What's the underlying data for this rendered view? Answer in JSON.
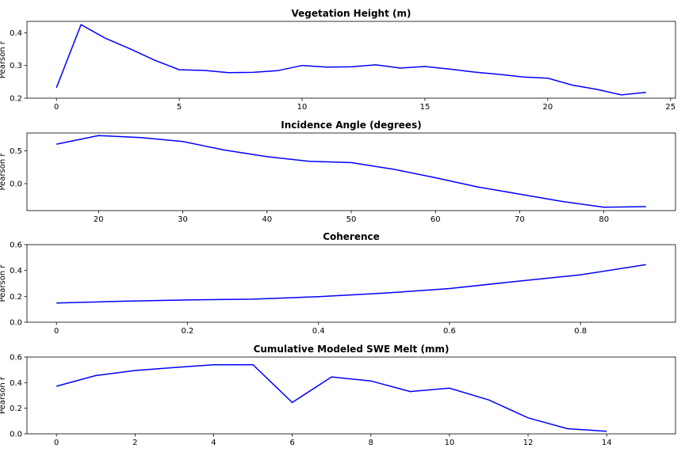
{
  "figure": {
    "line_color": "#0000ff"
  },
  "chart_data": [
    {
      "type": "line",
      "title": "Vegetation Height (m)",
      "xlabel": "",
      "ylabel": "Pearson r",
      "xlim": [
        -1.2,
        25.2
      ],
      "ylim": [
        0.2,
        0.435
      ],
      "xticks": [
        0,
        5,
        10,
        15,
        20,
        25
      ],
      "yticks": [
        0.2,
        0.3,
        0.4
      ],
      "yticklabels": [
        "0.2",
        "0.3",
        "0.4"
      ],
      "x": [
        0,
        1,
        2,
        3,
        4,
        5,
        6,
        7,
        8,
        9,
        10,
        11,
        12,
        13,
        14,
        15,
        16,
        17,
        18,
        19,
        20,
        21,
        22,
        23,
        24
      ],
      "y": [
        0.232,
        0.425,
        0.383,
        0.351,
        0.316,
        0.287,
        0.285,
        0.278,
        0.279,
        0.284,
        0.3,
        0.295,
        0.296,
        0.302,
        0.292,
        0.297,
        0.289,
        0.28,
        0.273,
        0.265,
        0.261,
        0.24,
        0.227,
        0.21,
        0.218
      ]
    },
    {
      "type": "line",
      "title": "Incidence Angle (degrees)",
      "xlabel": "",
      "ylabel": "Pearson r",
      "xlim": [
        11.5,
        88.5
      ],
      "ylim": [
        -0.41,
        0.77
      ],
      "xticks": [
        20,
        30,
        40,
        50,
        60,
        70,
        80
      ],
      "yticks": [
        0.0,
        0.5
      ],
      "yticklabels": [
        "0.0",
        "0.5"
      ],
      "x": [
        15,
        20,
        25,
        30,
        35,
        40,
        45,
        50,
        55,
        60,
        65,
        70,
        75,
        80,
        85
      ],
      "y": [
        0.6,
        0.73,
        0.7,
        0.64,
        0.51,
        0.41,
        0.34,
        0.32,
        0.22,
        0.09,
        -0.05,
        -0.16,
        -0.27,
        -0.36,
        -0.35
      ]
    },
    {
      "type": "line",
      "title": "Coherence",
      "xlabel": "",
      "ylabel": "Pearson r",
      "xlim": [
        -0.045,
        0.945
      ],
      "ylim": [
        0.0,
        0.6
      ],
      "xticks": [
        0.0,
        0.2,
        0.4,
        0.6,
        0.8
      ],
      "yticks": [
        0.0,
        0.2,
        0.4,
        0.6
      ],
      "yticklabels": [
        "0.0",
        "0.2",
        "0.4",
        "0.6"
      ],
      "x": [
        0.0,
        0.1,
        0.2,
        0.3,
        0.4,
        0.5,
        0.6,
        0.7,
        0.8,
        0.9
      ],
      "y": [
        0.148,
        0.162,
        0.172,
        0.178,
        0.198,
        0.225,
        0.26,
        0.315,
        0.367,
        0.445
      ]
    },
    {
      "type": "line",
      "title": "Cumulative Modeled SWE Melt (mm)",
      "xlabel": "",
      "ylabel": "Pearson r",
      "xlim": [
        -0.75,
        15.75
      ],
      "ylim": [
        0.0,
        0.6
      ],
      "xticks": [
        0,
        2,
        4,
        6,
        8,
        10,
        12,
        14
      ],
      "yticks": [
        0.0,
        0.2,
        0.4,
        0.6
      ],
      "yticklabels": [
        "0.0",
        "0.2",
        "0.4",
        "0.6"
      ],
      "x": [
        0,
        1,
        2,
        3,
        4,
        5,
        6,
        7,
        8,
        9,
        10,
        11,
        12,
        13,
        14
      ],
      "y": [
        0.372,
        0.455,
        0.495,
        0.518,
        0.54,
        0.54,
        0.245,
        0.445,
        0.413,
        0.33,
        0.357,
        0.265,
        0.125,
        0.04,
        0.02
      ]
    }
  ]
}
